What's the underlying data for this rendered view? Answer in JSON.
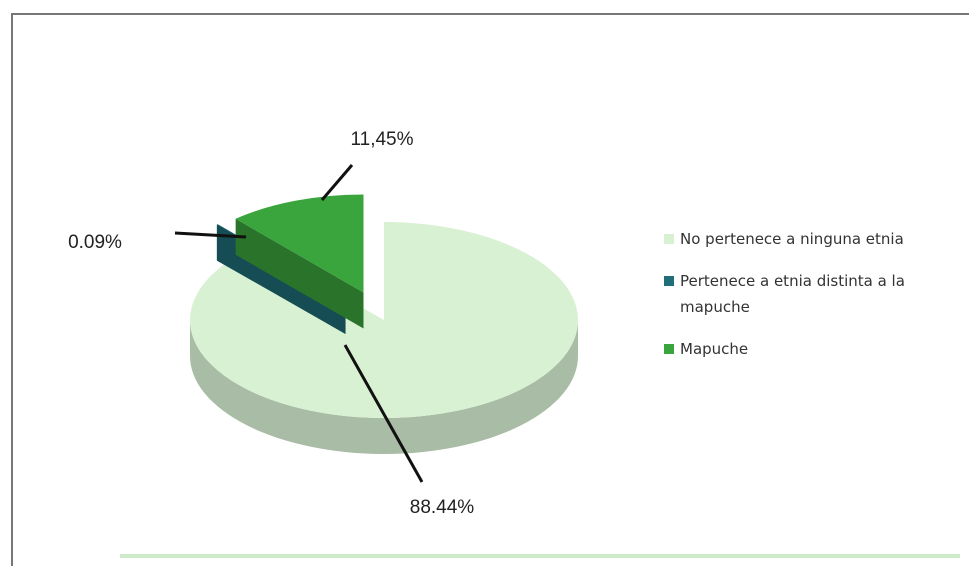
{
  "chart_data": {
    "type": "pie3d",
    "categories": [
      "No pertenece a ninguna etnia",
      "Pertenece a etnia distinta a la mapuche",
      "Mapuche"
    ],
    "values": [
      88.44,
      0.09,
      11.45
    ],
    "value_labels": [
      "88.44%",
      "0.09%",
      "11,45%"
    ],
    "colors": [
      "#d9f1d3",
      "#1f6e78",
      "#3aa53c"
    ],
    "explode": [
      false,
      true,
      true
    ],
    "legend": "right"
  }
}
